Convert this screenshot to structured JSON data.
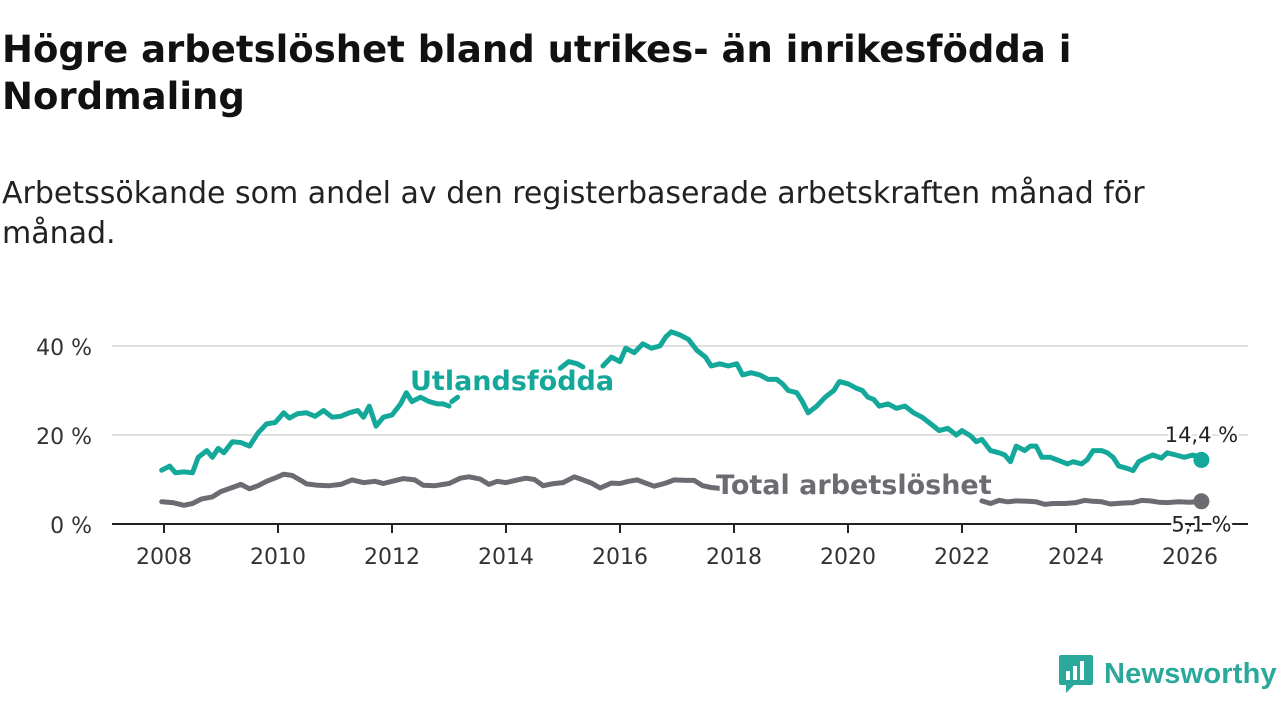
{
  "title": "Högre arbetslöshet bland utrikes- än inrikesfödda i Nordmaling",
  "subtitle": "Arbetssökande som andel av den registerbaserade arbetskraften månad för månad.",
  "brand": {
    "name": "Newsworthy",
    "color": "#2aa89b"
  },
  "chart_data": {
    "type": "line",
    "title": "Högre arbetslöshet bland utrikes- än inrikesfödda i Nordmaling",
    "xlabel": "",
    "ylabel": "",
    "xlim": [
      2007.6,
      2026.6
    ],
    "ylim": [
      0,
      45
    ],
    "grid": true,
    "x_ticks": [
      2008,
      2010,
      2012,
      2014,
      2016,
      2018,
      2020,
      2022,
      2024,
      2026
    ],
    "x_tick_labels": [
      "2008",
      "2010",
      "2012",
      "2014",
      "2016",
      "2018",
      "2020",
      "2022",
      "2024",
      "2026"
    ],
    "y_ticks": [
      0,
      20,
      40
    ],
    "y_tick_labels": [
      "0 %",
      "20 %",
      "40 %"
    ],
    "series": [
      {
        "name": "Utlandsfödda",
        "color": "#14a89a",
        "end_label": "14,4 %",
        "points": [
          [
            2007.96,
            12.1
          ],
          [
            2008.1,
            13.0
          ],
          [
            2008.2,
            11.5
          ],
          [
            2008.35,
            11.7
          ],
          [
            2008.5,
            11.5
          ],
          [
            2008.6,
            15.0
          ],
          [
            2008.75,
            16.5
          ],
          [
            2008.85,
            15.0
          ],
          [
            2008.95,
            17.0
          ],
          [
            2009.05,
            16.0
          ],
          [
            2009.2,
            18.5
          ],
          [
            2009.35,
            18.3
          ],
          [
            2009.5,
            17.5
          ],
          [
            2009.65,
            20.5
          ],
          [
            2009.8,
            22.5
          ],
          [
            2009.95,
            22.8
          ],
          [
            2010.1,
            25.0
          ],
          [
            2010.2,
            23.8
          ],
          [
            2010.35,
            24.8
          ],
          [
            2010.5,
            25.0
          ],
          [
            2010.65,
            24.2
          ],
          [
            2010.8,
            25.5
          ],
          [
            2010.95,
            24.0
          ],
          [
            2011.1,
            24.2
          ],
          [
            2011.25,
            25.0
          ],
          [
            2011.4,
            25.5
          ],
          [
            2011.5,
            24.0
          ],
          [
            2011.6,
            26.5
          ],
          [
            2011.72,
            22.0
          ],
          [
            2011.85,
            24.0
          ],
          [
            2012.0,
            24.5
          ],
          [
            2012.15,
            27.0
          ],
          [
            2012.25,
            29.5
          ],
          [
            2012.35,
            27.5
          ],
          [
            2012.5,
            28.5
          ],
          [
            2012.65,
            27.5
          ],
          [
            2012.8,
            27.0
          ],
          [
            2012.9,
            27.0
          ],
          [
            2013.0,
            26.5
          ],
          null,
          [
            2013.05,
            27.5
          ],
          [
            2013.15,
            28.5
          ],
          null,
          [
            2014.95,
            35.0
          ],
          [
            2015.1,
            36.5
          ],
          [
            2015.25,
            36.0
          ],
          [
            2015.35,
            35.3
          ],
          null,
          [
            2015.7,
            35.5
          ],
          [
            2015.85,
            37.5
          ],
          [
            2016.0,
            36.5
          ],
          [
            2016.1,
            39.5
          ],
          [
            2016.25,
            38.5
          ],
          [
            2016.4,
            40.5
          ],
          [
            2016.55,
            39.5
          ],
          [
            2016.7,
            40.0
          ],
          [
            2016.8,
            42.0
          ],
          [
            2016.9,
            43.2
          ],
          [
            2017.05,
            42.5
          ],
          [
            2017.2,
            41.5
          ],
          [
            2017.35,
            39.0
          ],
          [
            2017.5,
            37.5
          ],
          [
            2017.6,
            35.5
          ],
          [
            2017.75,
            36.0
          ],
          [
            2017.9,
            35.5
          ],
          [
            2018.05,
            36.0
          ],
          [
            2018.15,
            33.5
          ],
          [
            2018.3,
            34.0
          ],
          [
            2018.45,
            33.5
          ],
          [
            2018.6,
            32.5
          ],
          [
            2018.75,
            32.5
          ],
          [
            2018.85,
            31.5
          ],
          [
            2018.95,
            30.0
          ],
          [
            2019.1,
            29.5
          ],
          [
            2019.2,
            27.5
          ],
          [
            2019.3,
            25.0
          ],
          [
            2019.45,
            26.5
          ],
          [
            2019.6,
            28.5
          ],
          [
            2019.75,
            30.0
          ],
          [
            2019.85,
            32.0
          ],
          [
            2020.0,
            31.5
          ],
          [
            2020.15,
            30.5
          ],
          [
            2020.25,
            30.0
          ],
          [
            2020.35,
            28.5
          ],
          [
            2020.45,
            28.0
          ],
          [
            2020.55,
            26.5
          ],
          [
            2020.7,
            27.0
          ],
          [
            2020.85,
            26.0
          ],
          [
            2021.0,
            26.5
          ],
          [
            2021.15,
            25.0
          ],
          [
            2021.3,
            24.0
          ],
          [
            2021.45,
            22.5
          ],
          [
            2021.6,
            21.0
          ],
          [
            2021.75,
            21.5
          ],
          [
            2021.9,
            20.0
          ],
          [
            2022.0,
            21.0
          ],
          [
            2022.15,
            19.8
          ],
          [
            2022.25,
            18.5
          ],
          [
            2022.35,
            19.0
          ],
          [
            2022.5,
            16.5
          ],
          [
            2022.65,
            16.0
          ],
          [
            2022.75,
            15.5
          ],
          [
            2022.85,
            14.0
          ],
          [
            2022.95,
            17.5
          ],
          [
            2023.1,
            16.5
          ],
          [
            2023.2,
            17.5
          ],
          [
            2023.3,
            17.5
          ],
          [
            2023.4,
            15.0
          ],
          [
            2023.55,
            15.0
          ],
          [
            2023.65,
            14.5
          ],
          [
            2023.75,
            14.0
          ],
          [
            2023.85,
            13.5
          ],
          [
            2023.95,
            14.0
          ],
          [
            2024.1,
            13.5
          ],
          [
            2024.2,
            14.5
          ],
          [
            2024.3,
            16.5
          ],
          [
            2024.45,
            16.5
          ],
          [
            2024.55,
            16.0
          ],
          [
            2024.65,
            15.0
          ],
          [
            2024.75,
            13.0
          ],
          [
            2024.9,
            12.5
          ],
          [
            2025.0,
            12.0
          ],
          [
            2025.1,
            14.0
          ],
          [
            2025.25,
            15.0
          ],
          [
            2025.35,
            15.5
          ],
          [
            2025.5,
            14.8
          ],
          [
            2025.6,
            16.0
          ],
          [
            2025.75,
            15.5
          ],
          [
            2025.9,
            15.0
          ],
          [
            2026.05,
            15.5
          ],
          [
            2026.2,
            15.0
          ],
          [
            2026.2,
            14.4
          ]
        ]
      },
      {
        "name": "Total arbetslöshet",
        "color": "#6b6c72",
        "end_label": "5,1 %",
        "points": [
          [
            2007.96,
            5.0
          ],
          [
            2008.15,
            4.8
          ],
          [
            2008.35,
            4.2
          ],
          [
            2008.5,
            4.6
          ],
          [
            2008.65,
            5.6
          ],
          [
            2008.85,
            6.1
          ],
          [
            2009.0,
            7.3
          ],
          [
            2009.2,
            8.2
          ],
          [
            2009.35,
            8.9
          ],
          [
            2009.5,
            7.9
          ],
          [
            2009.65,
            8.6
          ],
          [
            2009.8,
            9.6
          ],
          [
            2010.0,
            10.6
          ],
          [
            2010.1,
            11.2
          ],
          [
            2010.25,
            10.9
          ],
          [
            2010.4,
            9.8
          ],
          [
            2010.5,
            9.0
          ],
          [
            2010.7,
            8.7
          ],
          [
            2010.9,
            8.6
          ],
          [
            2011.1,
            8.9
          ],
          [
            2011.3,
            9.9
          ],
          [
            2011.5,
            9.3
          ],
          [
            2011.7,
            9.6
          ],
          [
            2011.85,
            9.1
          ],
          [
            2012.0,
            9.6
          ],
          [
            2012.2,
            10.2
          ],
          [
            2012.4,
            9.9
          ],
          [
            2012.55,
            8.7
          ],
          [
            2012.75,
            8.6
          ],
          [
            2013.0,
            9.1
          ],
          [
            2013.2,
            10.3
          ],
          [
            2013.35,
            10.6
          ],
          [
            2013.55,
            10.1
          ],
          [
            2013.7,
            8.9
          ],
          [
            2013.85,
            9.6
          ],
          [
            2014.0,
            9.3
          ],
          [
            2014.2,
            9.9
          ],
          [
            2014.35,
            10.3
          ],
          [
            2014.5,
            10.0
          ],
          [
            2014.65,
            8.6
          ],
          [
            2014.8,
            9.0
          ],
          [
            2015.0,
            9.3
          ],
          [
            2015.2,
            10.6
          ],
          [
            2015.35,
            9.9
          ],
          [
            2015.5,
            9.2
          ],
          [
            2015.65,
            8.1
          ],
          [
            2015.85,
            9.2
          ],
          [
            2016.0,
            9.1
          ],
          [
            2016.15,
            9.6
          ],
          [
            2016.3,
            9.9
          ],
          [
            2016.45,
            9.2
          ],
          [
            2016.6,
            8.5
          ],
          [
            2016.8,
            9.2
          ],
          [
            2016.95,
            9.9
          ],
          [
            2017.15,
            9.8
          ],
          [
            2017.3,
            9.8
          ],
          [
            2017.45,
            8.6
          ],
          [
            2017.6,
            8.2
          ],
          [
            2017.75,
            8.0
          ],
          null,
          [
            2022.35,
            5.2
          ],
          [
            2022.5,
            4.6
          ],
          [
            2022.65,
            5.3
          ],
          [
            2022.8,
            5.0
          ],
          [
            2022.95,
            5.2
          ],
          [
            2023.15,
            5.1
          ],
          [
            2023.3,
            5.0
          ],
          [
            2023.45,
            4.4
          ],
          [
            2023.6,
            4.6
          ],
          [
            2023.8,
            4.6
          ],
          [
            2024.0,
            4.8
          ],
          [
            2024.15,
            5.3
          ],
          [
            2024.3,
            5.1
          ],
          [
            2024.45,
            5.0
          ],
          [
            2024.6,
            4.5
          ],
          [
            2024.8,
            4.7
          ],
          [
            2025.0,
            4.8
          ],
          [
            2025.15,
            5.3
          ],
          [
            2025.3,
            5.2
          ],
          [
            2025.45,
            4.9
          ],
          [
            2025.6,
            4.8
          ],
          [
            2025.8,
            5.0
          ],
          [
            2026.0,
            4.9
          ],
          [
            2026.2,
            5.1
          ]
        ]
      }
    ],
    "annotations": [
      "Utlandsfödda",
      "Total arbetslöshet"
    ]
  }
}
